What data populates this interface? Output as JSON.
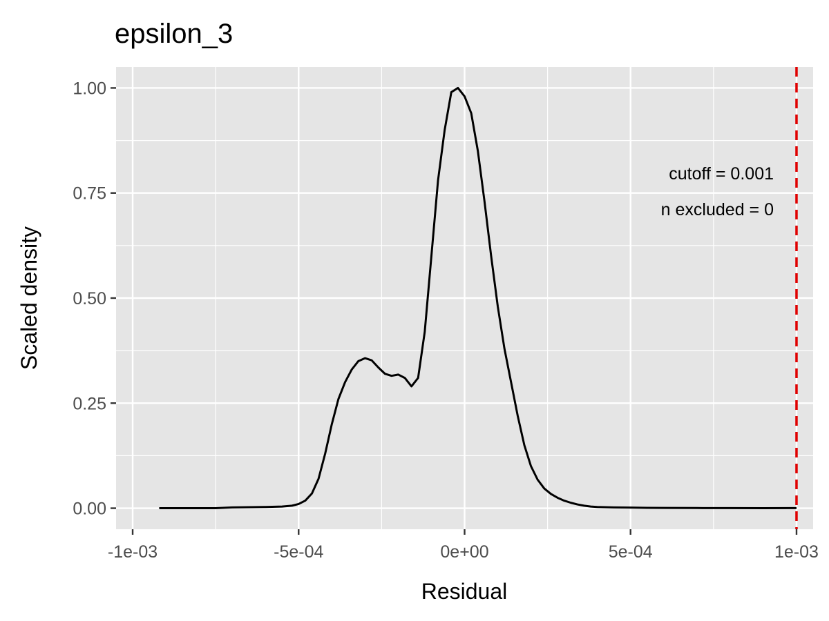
{
  "chart_data": {
    "type": "line",
    "title": "epsilon_3",
    "xlabel": "Residual",
    "ylabel": "Scaled density",
    "xlim": [
      -0.00105,
      0.00105
    ],
    "ylim": [
      -0.05,
      1.05
    ],
    "x_ticks": [
      -0.001,
      -0.0005,
      0,
      0.0005,
      0.001
    ],
    "x_tick_labels": [
      "-1e-03",
      "-5e-04",
      "0e+00",
      "5e-04",
      "1e-03"
    ],
    "y_ticks": [
      0,
      0.25,
      0.5,
      0.75,
      1.0
    ],
    "y_tick_labels": [
      "0.00",
      "0.25",
      "0.50",
      "0.75",
      "1.00"
    ],
    "grid": true,
    "series": [
      {
        "x": [
          -0.00092,
          -0.0008,
          -0.00075,
          -0.0007,
          -0.0006,
          -0.00055,
          -0.00052,
          -0.0005,
          -0.00048,
          -0.00046,
          -0.00044,
          -0.00042,
          -0.0004,
          -0.00038,
          -0.00036,
          -0.00034,
          -0.00032,
          -0.0003,
          -0.00028,
          -0.00026,
          -0.00024,
          -0.00022,
          -0.0002,
          -0.00018,
          -0.00016,
          -0.00014,
          -0.00012,
          -0.0001,
          -8e-05,
          -6e-05,
          -4e-05,
          -2e-05,
          0,
          2e-05,
          4e-05,
          6e-05,
          8e-05,
          0.0001,
          0.00012,
          0.00014,
          0.00016,
          0.00018,
          0.0002,
          0.00022,
          0.00024,
          0.00026,
          0.00028,
          0.0003,
          0.00032,
          0.00034,
          0.00036,
          0.00038,
          0.0004,
          0.00045,
          0.0005,
          0.00055,
          0.0006,
          0.0007,
          0.0008,
          0.0009,
          0.001
        ],
        "values": [
          0,
          0,
          0,
          0.002,
          0.003,
          0.004,
          0.006,
          0.01,
          0.018,
          0.035,
          0.07,
          0.13,
          0.2,
          0.26,
          0.3,
          0.33,
          0.35,
          0.357,
          0.352,
          0.335,
          0.32,
          0.315,
          0.318,
          0.31,
          0.29,
          0.31,
          0.42,
          0.6,
          0.78,
          0.9,
          0.99,
          1.0,
          0.98,
          0.94,
          0.85,
          0.73,
          0.6,
          0.48,
          0.38,
          0.3,
          0.22,
          0.15,
          0.1,
          0.068,
          0.047,
          0.034,
          0.025,
          0.018,
          0.013,
          0.009,
          0.006,
          0.004,
          0.003,
          0.002,
          0.0015,
          0.001,
          0.0007,
          0.0004,
          0.0002,
          0.0001,
          0.0003
        ],
        "x_offset_note": ""
      }
    ],
    "reference_line": {
      "x": 0.001,
      "color": "#e00000",
      "style": "dashed"
    },
    "annotations": [
      "cutoff = 0.001",
      "n excluded = 0"
    ]
  },
  "colors": {
    "panel": "#e5e5e5",
    "grid": "#ffffff",
    "line": "#000000",
    "cutoff": "#e00000"
  }
}
